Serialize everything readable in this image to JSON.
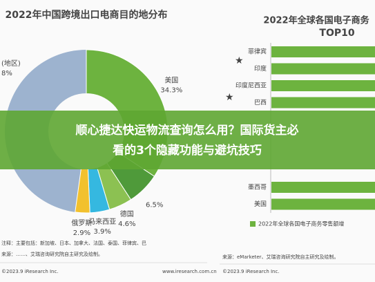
{
  "left_panel": {
    "title": "2022年中国跨境出口电商目的地分布",
    "slices": [
      {
        "name": "美国",
        "value": 34.3,
        "value_label": "34.3%",
        "color": "#6db33f"
      },
      {
        "name": null,
        "value": 6.5,
        "value_label": "6.5%",
        "color": "#4f9a3a"
      },
      {
        "name": "德国",
        "value": 4.6,
        "value_label": "4.6%",
        "color": "#8cc152"
      },
      {
        "name": "马来西亚",
        "value": 3.9,
        "value_label": "3.9%",
        "color": "#35b8e0"
      },
      {
        "name": "俄罗斯",
        "value": 2.9,
        "value_label": "2.9%",
        "color": "#f2c12e"
      }
    ],
    "partial_label": {
      "name": "(地区)",
      "value_label": "8%"
    },
    "note": "注释：主要包括：新加坡、日本、加拿大、法国、泰国、菲律宾、巴",
    "source": "来源：……、艾瑞咨询研究院自主研究及绘制。",
    "copyright": "©2023.9 iResearch Inc.",
    "website": "www.iresearch.com.cn"
  },
  "right_panel": {
    "title": "2022年全球各国电子商务",
    "subtitle": "TOP10",
    "rows": [
      {
        "label": "菲律宾",
        "row": 0
      },
      {
        "label": "印度",
        "row": 1
      },
      {
        "label": "印度尼西亚",
        "row": 2
      },
      {
        "label": "巴西",
        "row": 3
      },
      {
        "label": "墨西哥",
        "row": 8
      },
      {
        "label": "美国",
        "row": 9
      }
    ],
    "legend": "2022年全球各国电子商务零售额增",
    "source": "来源：eMarketer、艾瑞咨询研究院自主研究及绘制。",
    "copyright": "©2023.9 iResearch Inc."
  },
  "banner": {
    "line1": "顺心捷达快运物流查询怎么用？国际货主必",
    "line2": "看的3个隐藏功能与避坑技巧"
  }
}
